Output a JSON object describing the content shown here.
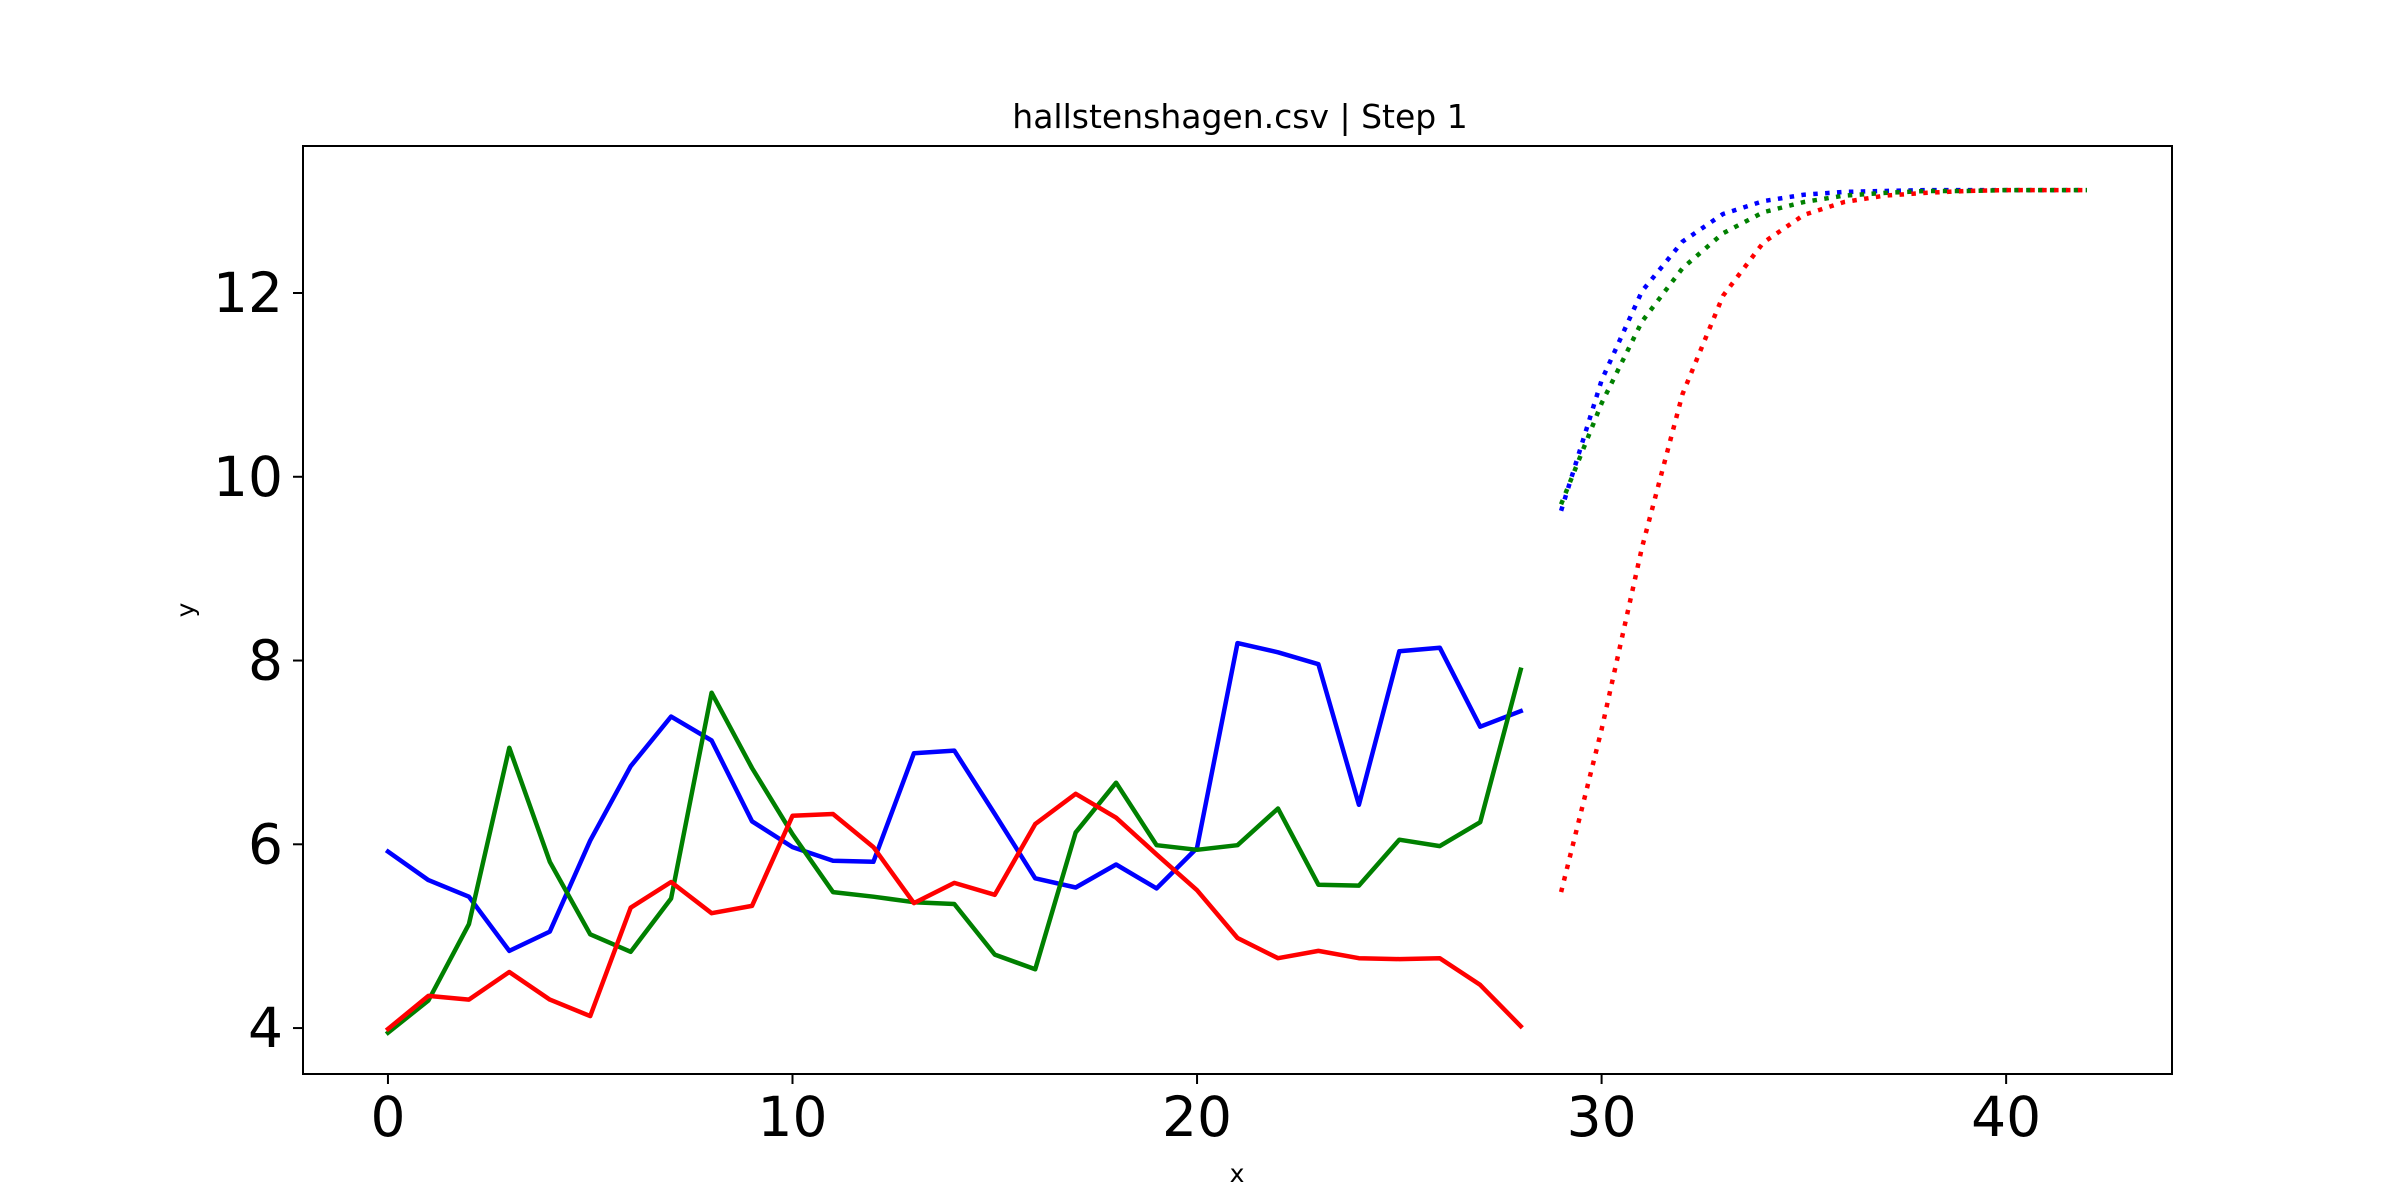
{
  "chart_data": {
    "type": "line",
    "title": "hallstenshagen.csv | Step 1",
    "xlabel": "x",
    "ylabel": "y",
    "xlim": [
      -2.1,
      44.1
    ],
    "ylim": [
      3.5,
      13.6
    ],
    "xticks": [
      0,
      10,
      20,
      30,
      40
    ],
    "yticks": [
      4,
      6,
      8,
      10,
      12
    ],
    "grid": false,
    "series": [
      {
        "color": "#0000ff",
        "style": "solid",
        "x": [
          0,
          1,
          2,
          3,
          4,
          5,
          6,
          7,
          8,
          9,
          10,
          11,
          12,
          13,
          14,
          15,
          16,
          17,
          18,
          19,
          20,
          21,
          22,
          23,
          24,
          25,
          26,
          27,
          28
        ],
        "values": [
          5.92,
          5.61,
          5.43,
          4.84,
          5.05,
          6.04,
          6.85,
          7.39,
          7.13,
          6.25,
          5.97,
          5.82,
          5.81,
          6.99,
          7.02,
          6.33,
          5.63,
          5.53,
          5.78,
          5.52,
          5.96,
          8.19,
          8.09,
          7.96,
          6.43,
          8.1,
          8.14,
          7.28,
          7.45
        ]
      },
      {
        "color": "#008000",
        "style": "solid",
        "x": [
          0,
          1,
          2,
          3,
          4,
          5,
          6,
          7,
          8,
          9,
          10,
          11,
          12,
          13,
          14,
          15,
          16,
          17,
          18,
          19,
          20,
          21,
          22,
          23,
          24,
          25,
          26,
          27,
          28
        ],
        "values": [
          3.95,
          4.3,
          5.13,
          7.05,
          5.81,
          5.02,
          4.83,
          5.41,
          7.65,
          6.83,
          6.11,
          5.48,
          5.43,
          5.37,
          5.35,
          4.8,
          4.64,
          6.13,
          6.67,
          5.99,
          5.94,
          5.99,
          6.39,
          5.56,
          5.55,
          6.05,
          5.98,
          6.24,
          7.9
        ]
      },
      {
        "color": "#ff0000",
        "style": "solid",
        "x": [
          0,
          1,
          2,
          3,
          4,
          5,
          6,
          7,
          8,
          9,
          10,
          11,
          12,
          13,
          14,
          15,
          16,
          17,
          18,
          19,
          20,
          21,
          22,
          23,
          24,
          25,
          26,
          27,
          28
        ],
        "values": [
          3.99,
          4.35,
          4.31,
          4.61,
          4.31,
          4.13,
          5.31,
          5.59,
          5.25,
          5.33,
          6.31,
          6.33,
          5.97,
          5.36,
          5.58,
          5.45,
          6.22,
          6.55,
          6.29,
          5.89,
          5.5,
          4.98,
          4.76,
          4.84,
          4.76,
          4.75,
          4.76,
          4.47,
          4.02
        ]
      },
      {
        "color": "#0000ff",
        "style": "dotted",
        "x": [
          29,
          30,
          31,
          32,
          33,
          34,
          35,
          36,
          37,
          38,
          39,
          40,
          41,
          42
        ],
        "values": [
          9.63,
          11.05,
          12.02,
          12.56,
          12.86,
          13.0,
          13.07,
          13.1,
          13.11,
          13.12,
          13.12,
          13.12,
          13.12,
          13.12
        ]
      },
      {
        "color": "#008000",
        "style": "dotted",
        "x": [
          29,
          30,
          31,
          32,
          33,
          34,
          35,
          36,
          37,
          38,
          39,
          40,
          41,
          42
        ],
        "values": [
          9.7,
          10.8,
          11.69,
          12.27,
          12.65,
          12.88,
          12.99,
          13.06,
          13.09,
          13.11,
          13.11,
          13.12,
          13.12,
          13.12
        ]
      },
      {
        "color": "#ff0000",
        "style": "dotted",
        "x": [
          29,
          30,
          31,
          32,
          33,
          34,
          35,
          36,
          37,
          38,
          39,
          40,
          41,
          42
        ],
        "values": [
          5.48,
          7.25,
          9.23,
          10.9,
          11.97,
          12.55,
          12.85,
          12.99,
          13.06,
          13.09,
          13.11,
          13.12,
          13.12,
          13.12
        ]
      }
    ]
  }
}
